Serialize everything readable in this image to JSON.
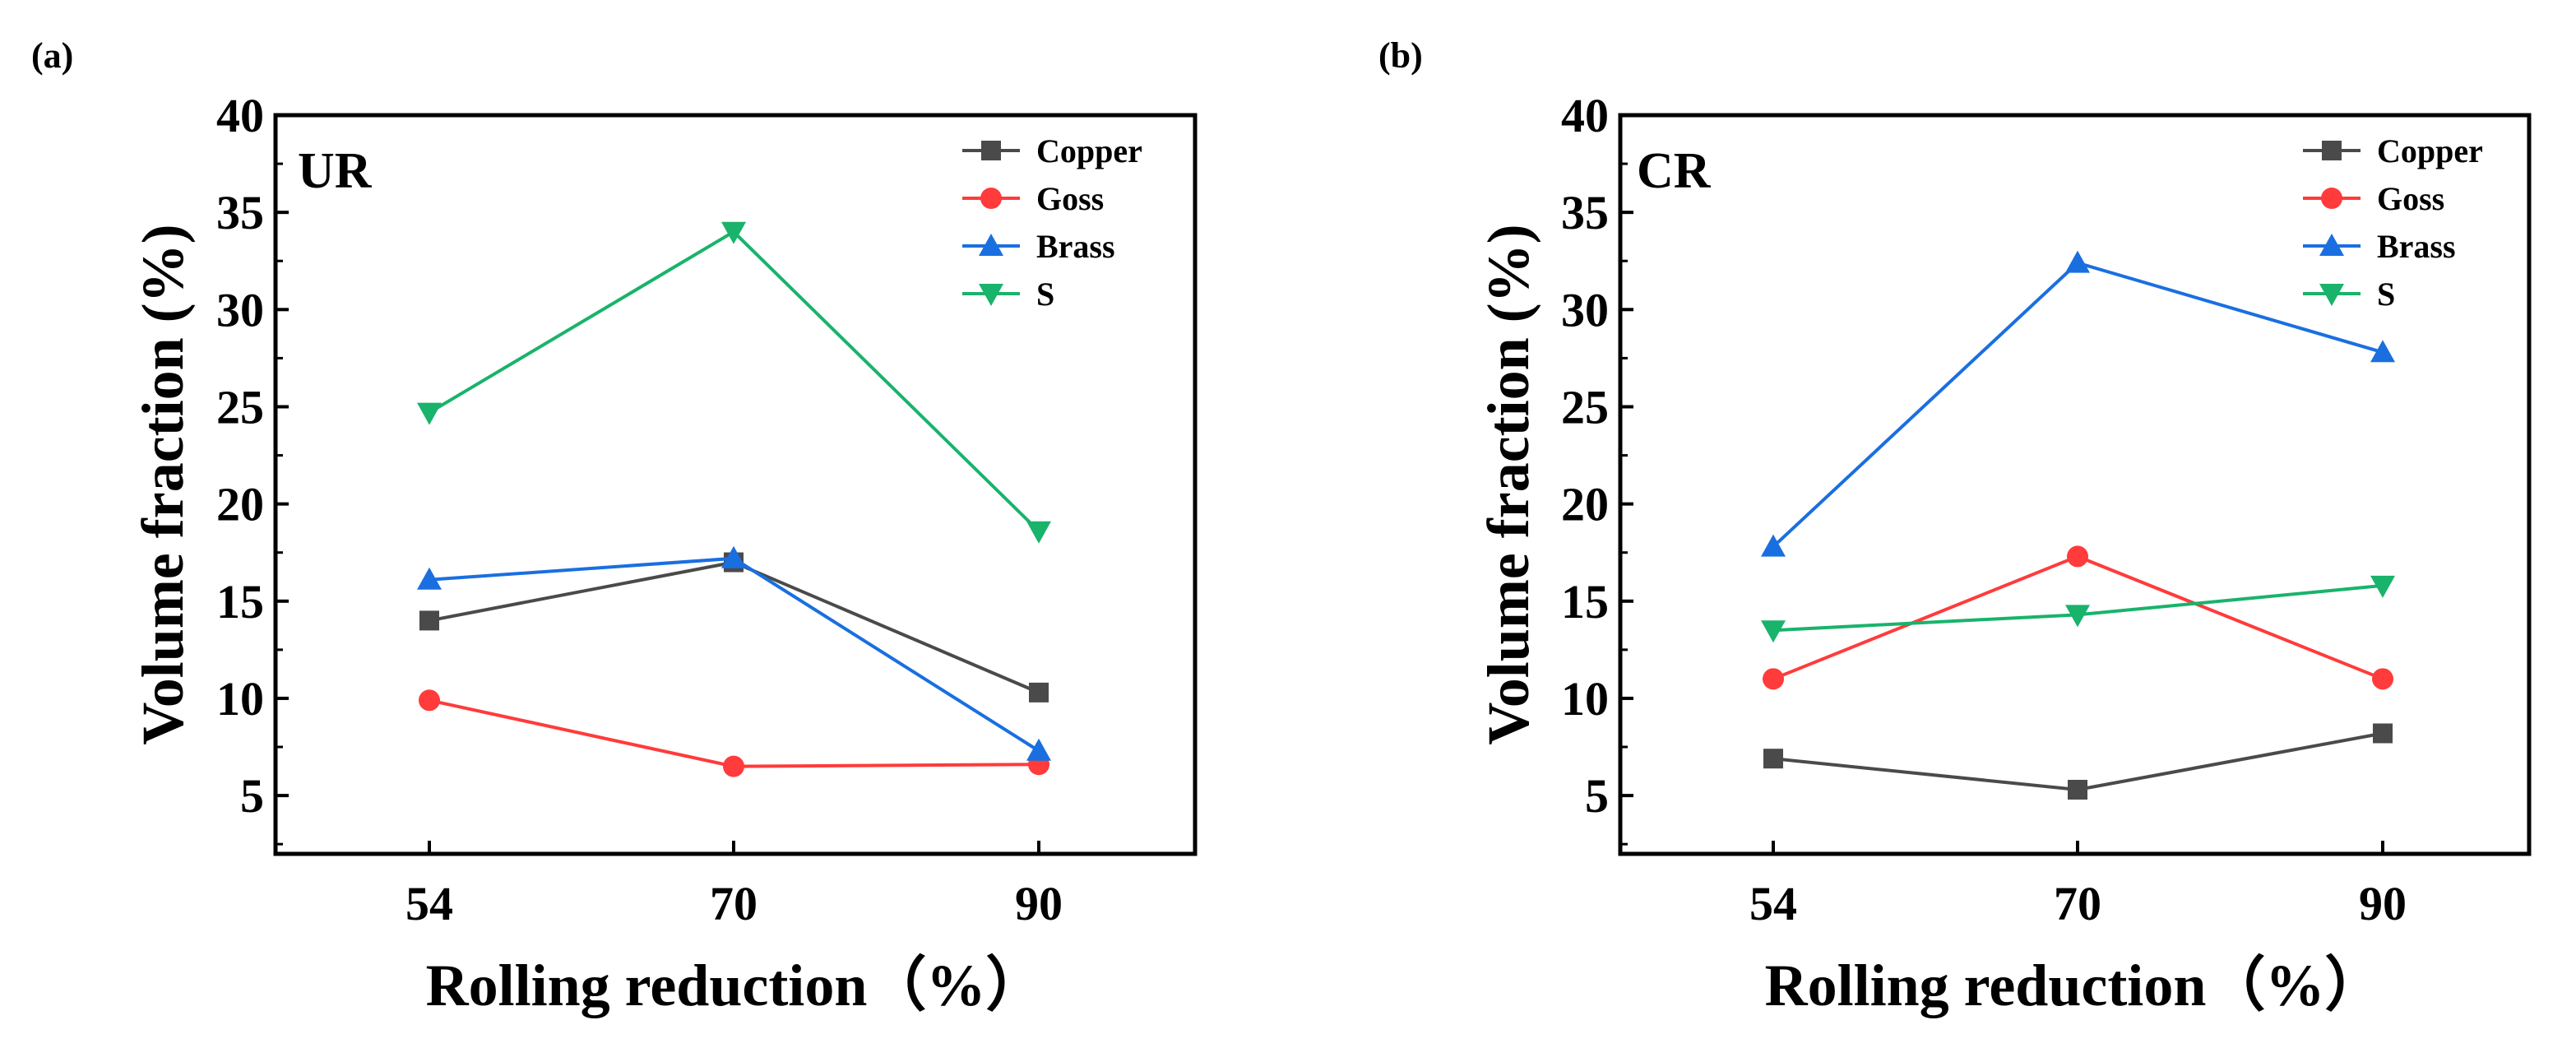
{
  "chart_data": [
    {
      "type": "line",
      "panel": "(a)",
      "inset_label": "UR",
      "xlabel": "Rolling reduction（%）",
      "ylabel": "Volume fraction (%)",
      "categories": [
        "54",
        "70",
        "90"
      ],
      "ylim": [
        2,
        40
      ],
      "yticks": [
        5,
        10,
        15,
        20,
        25,
        30,
        35,
        40
      ],
      "legend_position": "top-right",
      "series": [
        {
          "name": "Copper",
          "color": "#4a4a4a",
          "marker": "square",
          "values": [
            14.0,
            17.0,
            10.3
          ]
        },
        {
          "name": "Goss",
          "color": "#ff3b3b",
          "marker": "circle",
          "values": [
            9.9,
            6.5,
            6.6
          ]
        },
        {
          "name": "Brass",
          "color": "#1a6fe0",
          "marker": "triangle-up",
          "values": [
            16.1,
            17.2,
            7.3
          ]
        },
        {
          "name": "S",
          "color": "#19b36b",
          "marker": "triangle-down",
          "values": [
            24.7,
            34.0,
            18.6
          ]
        }
      ]
    },
    {
      "type": "line",
      "panel": "(b)",
      "inset_label": "CR",
      "xlabel": "Rolling reduction（%）",
      "ylabel": "Volume fraction (%)",
      "categories": [
        "54",
        "70",
        "90"
      ],
      "ylim": [
        2,
        40
      ],
      "yticks": [
        5,
        10,
        15,
        20,
        25,
        30,
        35,
        40
      ],
      "legend_position": "top-right",
      "series": [
        {
          "name": "Copper",
          "color": "#4a4a4a",
          "marker": "square",
          "values": [
            6.9,
            5.3,
            8.2
          ]
        },
        {
          "name": "Goss",
          "color": "#ff3b3b",
          "marker": "circle",
          "values": [
            11.0,
            17.3,
            11.0
          ]
        },
        {
          "name": "Brass",
          "color": "#1a6fe0",
          "marker": "triangle-up",
          "values": [
            17.8,
            32.4,
            27.8
          ]
        },
        {
          "name": "S",
          "color": "#19b36b",
          "marker": "triangle-down",
          "values": [
            13.5,
            14.3,
            15.8
          ]
        }
      ]
    }
  ]
}
